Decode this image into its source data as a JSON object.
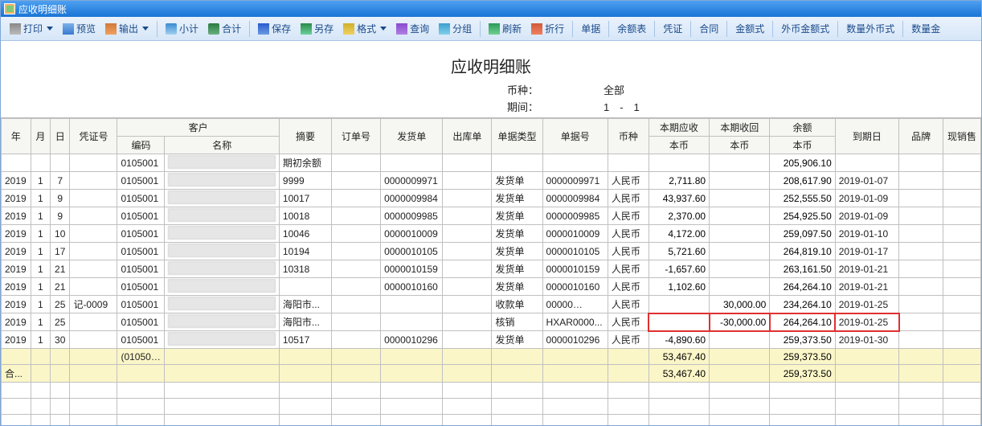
{
  "window": {
    "title": "应收明细账"
  },
  "toolbar": {
    "print": "打印",
    "preview": "预览",
    "export": "输出",
    "subtotal": "小计",
    "total": "合计",
    "save": "保存",
    "saveas": "另存",
    "format": "格式",
    "query": "查询",
    "group": "分组",
    "refresh": "刷新",
    "collapse": "折行",
    "single": "单据",
    "balance": "余额表",
    "voucher": "凭证",
    "contract": "合同",
    "amount": "金额式",
    "fcamount": "外币金额式",
    "qtyfc": "数量外币式",
    "qtyamt": "数量金"
  },
  "page": {
    "title": "应收明细账",
    "currency_label": "币种：",
    "currency_value": "全部",
    "period_label": "期间：",
    "period_value": "1　-　1"
  },
  "columns": {
    "year": "年",
    "month": "月",
    "day": "日",
    "voucher": "凭证号",
    "customer": "客户",
    "cust_code": "编码",
    "cust_name": "名称",
    "summary": "摘要",
    "order": "订单号",
    "delivery": "发货单",
    "outbound": "出库单",
    "billtype": "单据类型",
    "billno": "单据号",
    "currency": "币种",
    "receivable": "本期应收",
    "received": "本期收回",
    "balance": "余额",
    "local": "本币",
    "duedate": "到期日",
    "brand": "品牌",
    "cash": "现销售"
  },
  "rows": [
    {
      "cust_code": "0105001",
      "summary": "期初余额",
      "balance": "205,906.10"
    },
    {
      "year": "2019",
      "month": "1",
      "day": "7",
      "cust_code": "0105001",
      "summary": "9999",
      "delivery": "0000009971",
      "billtype": "发货单",
      "billno": "0000009971",
      "currency": "人民币",
      "receivable": "2,711.80",
      "balance": "208,617.90",
      "duedate": "2019-01-07"
    },
    {
      "year": "2019",
      "month": "1",
      "day": "9",
      "cust_code": "0105001",
      "summary": "10017",
      "delivery": "0000009984",
      "billtype": "发货单",
      "billno": "0000009984",
      "currency": "人民币",
      "receivable": "43,937.60",
      "balance": "252,555.50",
      "duedate": "2019-01-09"
    },
    {
      "year": "2019",
      "month": "1",
      "day": "9",
      "cust_code": "0105001",
      "summary": "10018",
      "delivery": "0000009985",
      "billtype": "发货单",
      "billno": "0000009985",
      "currency": "人民币",
      "receivable": "2,370.00",
      "balance": "254,925.50",
      "duedate": "2019-01-09"
    },
    {
      "year": "2019",
      "month": "1",
      "day": "10",
      "cust_code": "0105001",
      "summary": "10046",
      "delivery": "0000010009",
      "billtype": "发货单",
      "billno": "0000010009",
      "currency": "人民币",
      "receivable": "4,172.00",
      "balance": "259,097.50",
      "duedate": "2019-01-10"
    },
    {
      "year": "2019",
      "month": "1",
      "day": "17",
      "cust_code": "0105001",
      "summary": "10194",
      "delivery": "0000010105",
      "billtype": "发货单",
      "billno": "0000010105",
      "currency": "人民币",
      "receivable": "5,721.60",
      "balance": "264,819.10",
      "duedate": "2019-01-17"
    },
    {
      "year": "2019",
      "month": "1",
      "day": "21",
      "cust_code": "0105001",
      "summary": "10318",
      "delivery": "0000010159",
      "billtype": "发货单",
      "billno": "0000010159",
      "currency": "人民币",
      "receivable": "-1,657.60",
      "balance": "263,161.50",
      "duedate": "2019-01-21"
    },
    {
      "year": "2019",
      "month": "1",
      "day": "21",
      "cust_code": "0105001",
      "delivery": "0000010160",
      "billtype": "发货单",
      "billno": "0000010160",
      "currency": "人民币",
      "receivable": "1,102.60",
      "balance": "264,264.10",
      "duedate": "2019-01-21"
    },
    {
      "year": "2019",
      "month": "1",
      "day": "25",
      "voucher": "记-0009",
      "cust_code": "0105001",
      "summary": "海阳市...",
      "billtype": "收款单",
      "billno": "00000",
      "billno_btn": true,
      "currency": "人民币",
      "received": "30,000.00",
      "balance": "234,264.10",
      "duedate": "2019-01-25"
    },
    {
      "year": "2019",
      "month": "1",
      "day": "25",
      "cust_code": "0105001",
      "summary": "海阳市...",
      "billtype": "核销",
      "billno": "HXAR0000...",
      "currency": "人民币",
      "received": "-30,000.00",
      "balance": "264,264.10",
      "duedate": "2019-01-25",
      "highlight": true
    },
    {
      "year": "2019",
      "month": "1",
      "day": "30",
      "cust_code": "0105001",
      "summary": "10517",
      "delivery": "0000010296",
      "billtype": "发货单",
      "billno": "0000010296",
      "currency": "人民币",
      "receivable": "-4,890.60",
      "balance": "259,373.50",
      "duedate": "2019-01-30"
    }
  ],
  "totals": {
    "group_label": "(010500...",
    "group_receivable": "53,467.40",
    "group_balance": "259,373.50",
    "grand_label": "合...",
    "grand_receivable": "53,467.40",
    "grand_balance": "259,373.50"
  },
  "colors": {
    "titlebar_start": "#4da0f0",
    "titlebar_end": "#1a74d6",
    "toolbar_start": "#eaf2fb",
    "toolbar_end": "#d6e6f8",
    "sum_row": "#fbf6c8",
    "highlight_border": "#e03030",
    "grid_border": "#c0c0c0",
    "header_bg": "#f6f6f2"
  }
}
